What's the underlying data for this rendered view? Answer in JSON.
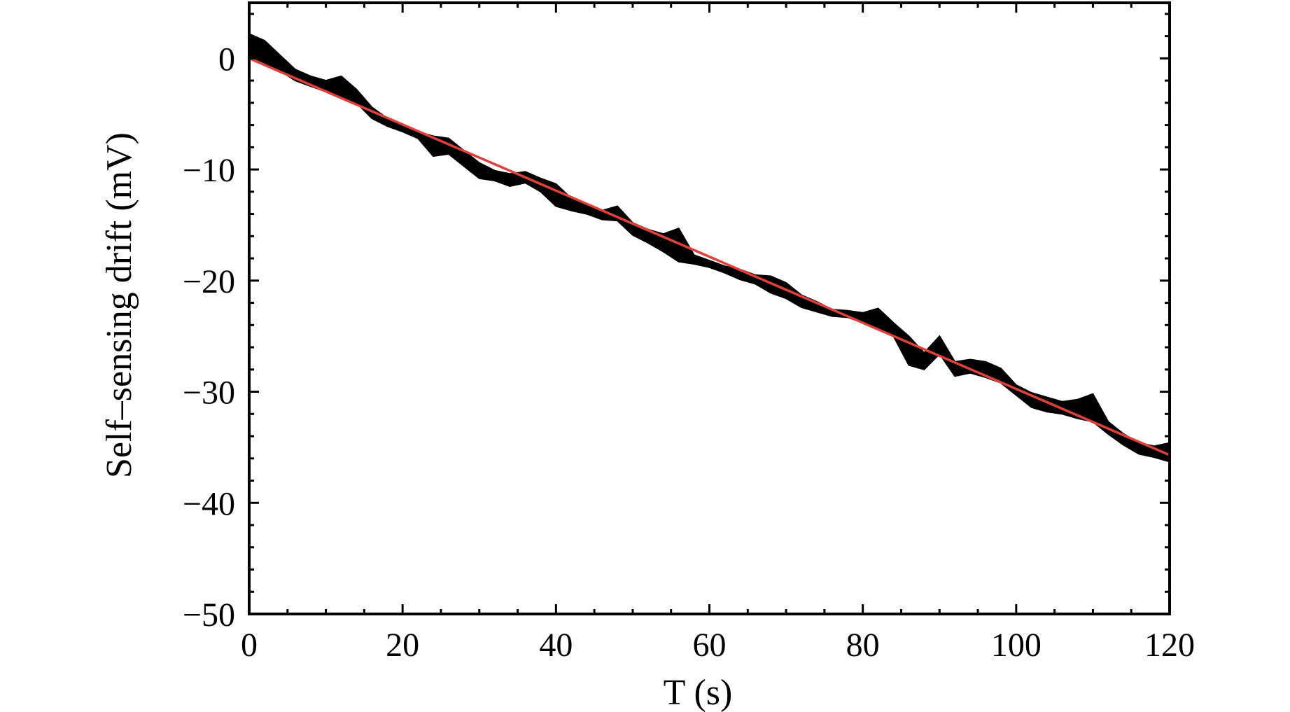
{
  "chart_data": {
    "type": "line",
    "title": "",
    "xlabel": "T (s)",
    "ylabel": "Self–sensing drift (mV)",
    "xlim": [
      0,
      120
    ],
    "ylim": [
      -50,
      5
    ],
    "x_ticks": [
      0,
      20,
      40,
      60,
      80,
      100,
      120
    ],
    "x_tick_labels": [
      "0",
      "20",
      "40",
      "60",
      "80",
      "100",
      "120"
    ],
    "y_ticks": [
      0,
      -10,
      -20,
      -30,
      -40,
      -50
    ],
    "y_tick_labels": [
      "0",
      "−10",
      "−20",
      "−30",
      "−40",
      "−50"
    ],
    "grid": false,
    "legend": "none",
    "series": [
      {
        "kind": "measured-band",
        "color": "#000000",
        "x": [
          0,
          2,
          4,
          6,
          8,
          10,
          12,
          14,
          16,
          18,
          20,
          22,
          24,
          26,
          28,
          30,
          32,
          34,
          36,
          38,
          40,
          42,
          44,
          46,
          48,
          50,
          52,
          54,
          56,
          58,
          60,
          62,
          64,
          66,
          68,
          70,
          72,
          74,
          76,
          78,
          80,
          82,
          84,
          86,
          88,
          90,
          92,
          94,
          96,
          98,
          100,
          102,
          104,
          106,
          108,
          110,
          112,
          114,
          116,
          118,
          120
        ],
        "upper": [
          2.2,
          1.6,
          0.3,
          -1.0,
          -1.6,
          -2.0,
          -1.6,
          -2.8,
          -4.4,
          -5.4,
          -6.0,
          -6.6,
          -7.0,
          -7.2,
          -8.3,
          -9.4,
          -10.1,
          -10.4,
          -10.2,
          -10.8,
          -11.3,
          -12.6,
          -13.1,
          -13.7,
          -13.3,
          -14.8,
          -15.4,
          -15.8,
          -15.3,
          -17.7,
          -18.2,
          -18.7,
          -19.0,
          -19.5,
          -19.6,
          -20.2,
          -21.3,
          -21.9,
          -22.6,
          -22.7,
          -22.9,
          -22.5,
          -23.8,
          -25.0,
          -26.5,
          -25.0,
          -27.3,
          -27.1,
          -27.3,
          -27.9,
          -29.4,
          -30.1,
          -30.5,
          -30.9,
          -30.7,
          -30.2,
          -32.7,
          -33.8,
          -34.6,
          -34.9,
          -34.6
        ],
        "lower": [
          0.2,
          -0.4,
          -1.1,
          -2.0,
          -2.5,
          -3.0,
          -3.6,
          -4.0,
          -5.4,
          -6.1,
          -6.6,
          -7.2,
          -8.8,
          -8.6,
          -9.7,
          -10.8,
          -11.0,
          -11.5,
          -11.2,
          -12.0,
          -13.3,
          -13.7,
          -14.0,
          -14.5,
          -14.6,
          -15.9,
          -16.6,
          -17.4,
          -18.3,
          -18.5,
          -18.8,
          -19.3,
          -19.9,
          -20.3,
          -21.1,
          -21.6,
          -22.4,
          -22.8,
          -23.2,
          -23.3,
          -23.8,
          -24.2,
          -25.0,
          -27.6,
          -28.0,
          -26.6,
          -28.6,
          -28.3,
          -28.7,
          -29.2,
          -30.3,
          -31.4,
          -31.8,
          -32.0,
          -32.4,
          -32.7,
          -33.8,
          -34.8,
          -35.6,
          -35.9,
          -36.3
        ]
      },
      {
        "kind": "linear-fit",
        "color": "#e0403a",
        "x": [
          0,
          120
        ],
        "y": [
          0,
          -35.7
        ]
      }
    ]
  }
}
